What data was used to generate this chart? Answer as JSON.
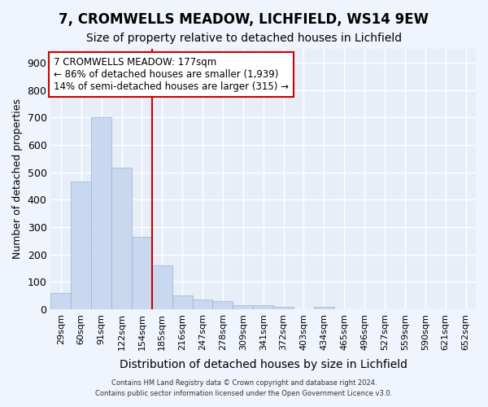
{
  "title": "7, CROMWELLS MEADOW, LICHFIELD, WS14 9EW",
  "subtitle": "Size of property relative to detached houses in Lichfield",
  "xlabel": "Distribution of detached houses by size in Lichfield",
  "ylabel": "Number of detached properties",
  "categories": [
    "29sqm",
    "60sqm",
    "91sqm",
    "122sqm",
    "154sqm",
    "185sqm",
    "216sqm",
    "247sqm",
    "278sqm",
    "309sqm",
    "341sqm",
    "372sqm",
    "403sqm",
    "434sqm",
    "465sqm",
    "496sqm",
    "527sqm",
    "559sqm",
    "590sqm",
    "621sqm",
    "652sqm"
  ],
  "values": [
    60,
    465,
    700,
    515,
    265,
    160,
    50,
    35,
    30,
    15,
    15,
    10,
    0,
    10,
    0,
    0,
    0,
    0,
    0,
    0,
    0
  ],
  "bar_color": "#c8d8ee",
  "bar_edge_color": "#9ab0d0",
  "bg_color": "#f0f4fc",
  "plot_bg_color": "#e8eef8",
  "grid_color": "#ffffff",
  "vline_color": "#cc0000",
  "vline_x_index": 5,
  "annotation_text": "7 CROMWELLS MEADOW: 177sqm\n← 86% of detached houses are smaller (1,939)\n14% of semi-detached houses are larger (315) →",
  "annotation_box_color": "#ffffff",
  "annotation_box_edge_color": "#cc0000",
  "ylim": [
    0,
    950
  ],
  "yticks": [
    0,
    100,
    200,
    300,
    400,
    500,
    600,
    700,
    800,
    900
  ],
  "footer_line1": "Contains HM Land Registry data © Crown copyright and database right 2024.",
  "footer_line2": "Contains public sector information licensed under the Open Government Licence v3.0.",
  "title_fontsize": 12,
  "subtitle_fontsize": 10,
  "annotation_fontsize": 8.5,
  "ylabel_fontsize": 9,
  "xlabel_fontsize": 10
}
